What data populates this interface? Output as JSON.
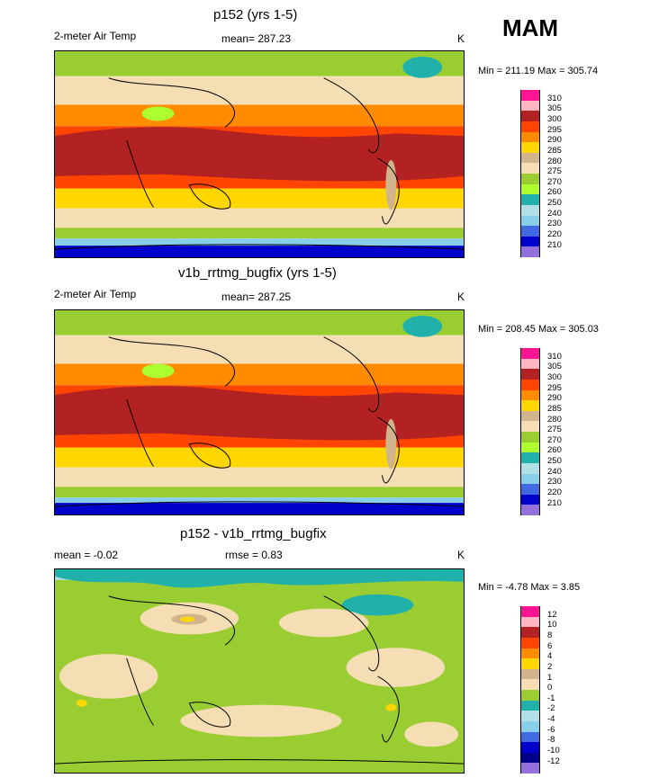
{
  "season": "MAM",
  "chart_data": [
    {
      "type": "heatmap",
      "title": "p152 (yrs 1-5)",
      "variable": "2-meter Air Temp",
      "mean_label": "mean= 287.23",
      "units": "K",
      "range_label": "Min = 211.19 Max = 305.74",
      "min": 211.19,
      "max": 305.74,
      "levels": [
        "310",
        "305",
        "300",
        "295",
        "290",
        "285",
        "280",
        "275",
        "270",
        "260",
        "250",
        "240",
        "230",
        "220",
        "210"
      ],
      "colors": [
        "#ff1493",
        "#ffb6c1",
        "#b22222",
        "#ff4500",
        "#ff8c00",
        "#ffd700",
        "#d2b48c",
        "#f5deb3",
        "#9acd32",
        "#adff2f",
        "#20b2aa",
        "#b0e0e6",
        "#87ceeb",
        "#4169e1",
        "#0000cd",
        "#9370db"
      ]
    },
    {
      "type": "heatmap",
      "title": "v1b_rrtmg_bugfix (yrs 1-5)",
      "variable": "2-meter Air Temp",
      "mean_label": "mean= 287.25",
      "units": "K",
      "range_label": "Min = 208.45 Max = 305.03",
      "min": 208.45,
      "max": 305.03,
      "levels": [
        "310",
        "305",
        "300",
        "295",
        "290",
        "285",
        "280",
        "275",
        "270",
        "260",
        "250",
        "240",
        "230",
        "220",
        "210"
      ],
      "colors": [
        "#ff1493",
        "#ffb6c1",
        "#b22222",
        "#ff4500",
        "#ff8c00",
        "#ffd700",
        "#d2b48c",
        "#f5deb3",
        "#9acd32",
        "#adff2f",
        "#20b2aa",
        "#b0e0e6",
        "#87ceeb",
        "#4169e1",
        "#0000cd",
        "#9370db"
      ]
    },
    {
      "type": "heatmap",
      "title": "p152 - v1b_rrtmg_bugfix",
      "mean_label": "mean = -0.02",
      "rmse_label": "rmse = 0.83",
      "units": "K",
      "range_label": "Min = -4.78 Max = 3.85",
      "min": -4.78,
      "max": 3.85,
      "levels": [
        "12",
        "10",
        "8",
        "6",
        "4",
        "2",
        "1",
        "0",
        "-1",
        "-2",
        "-4",
        "-6",
        "-8",
        "-10",
        "-12"
      ],
      "colors": [
        "#ff1493",
        "#ffb6c1",
        "#b22222",
        "#ff4500",
        "#ff8c00",
        "#ffd700",
        "#d2b48c",
        "#f5deb3",
        "#9acd32",
        "#20b2aa",
        "#b0e0e6",
        "#87ceeb",
        "#4169e1",
        "#0000cd",
        "#00008b",
        "#9370db"
      ]
    }
  ]
}
